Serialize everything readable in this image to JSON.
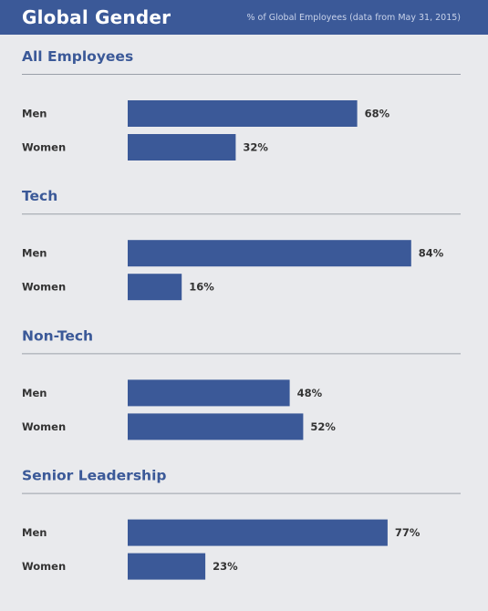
{
  "header": {
    "title": "Global Gender",
    "subtitle": "% of Global Employees (data from May 31, 2015)"
  },
  "colors": {
    "brand": "#3b5998",
    "background": "#e9eaed"
  },
  "chart_data": {
    "type": "bar",
    "orientation": "horizontal",
    "title": "Global Gender",
    "subtitle": "% of Global Employees (data from May 31, 2015)",
    "xlim": [
      0,
      100
    ],
    "grid": false,
    "legend": "none",
    "groups": [
      {
        "name": "All Employees",
        "categories": [
          "Men",
          "Women"
        ],
        "values": [
          68,
          32
        ],
        "value_labels": [
          "68%",
          "32%"
        ]
      },
      {
        "name": "Tech",
        "categories": [
          "Men",
          "Women"
        ],
        "values": [
          84,
          16
        ],
        "value_labels": [
          "84%",
          "16%"
        ]
      },
      {
        "name": "Non-Tech",
        "categories": [
          "Men",
          "Women"
        ],
        "values": [
          48,
          52
        ],
        "value_labels": [
          "48%",
          "52%"
        ]
      },
      {
        "name": "Senior Leadership",
        "categories": [
          "Men",
          "Women"
        ],
        "values": [
          77,
          23
        ],
        "value_labels": [
          "77%",
          "23%"
        ]
      }
    ]
  }
}
